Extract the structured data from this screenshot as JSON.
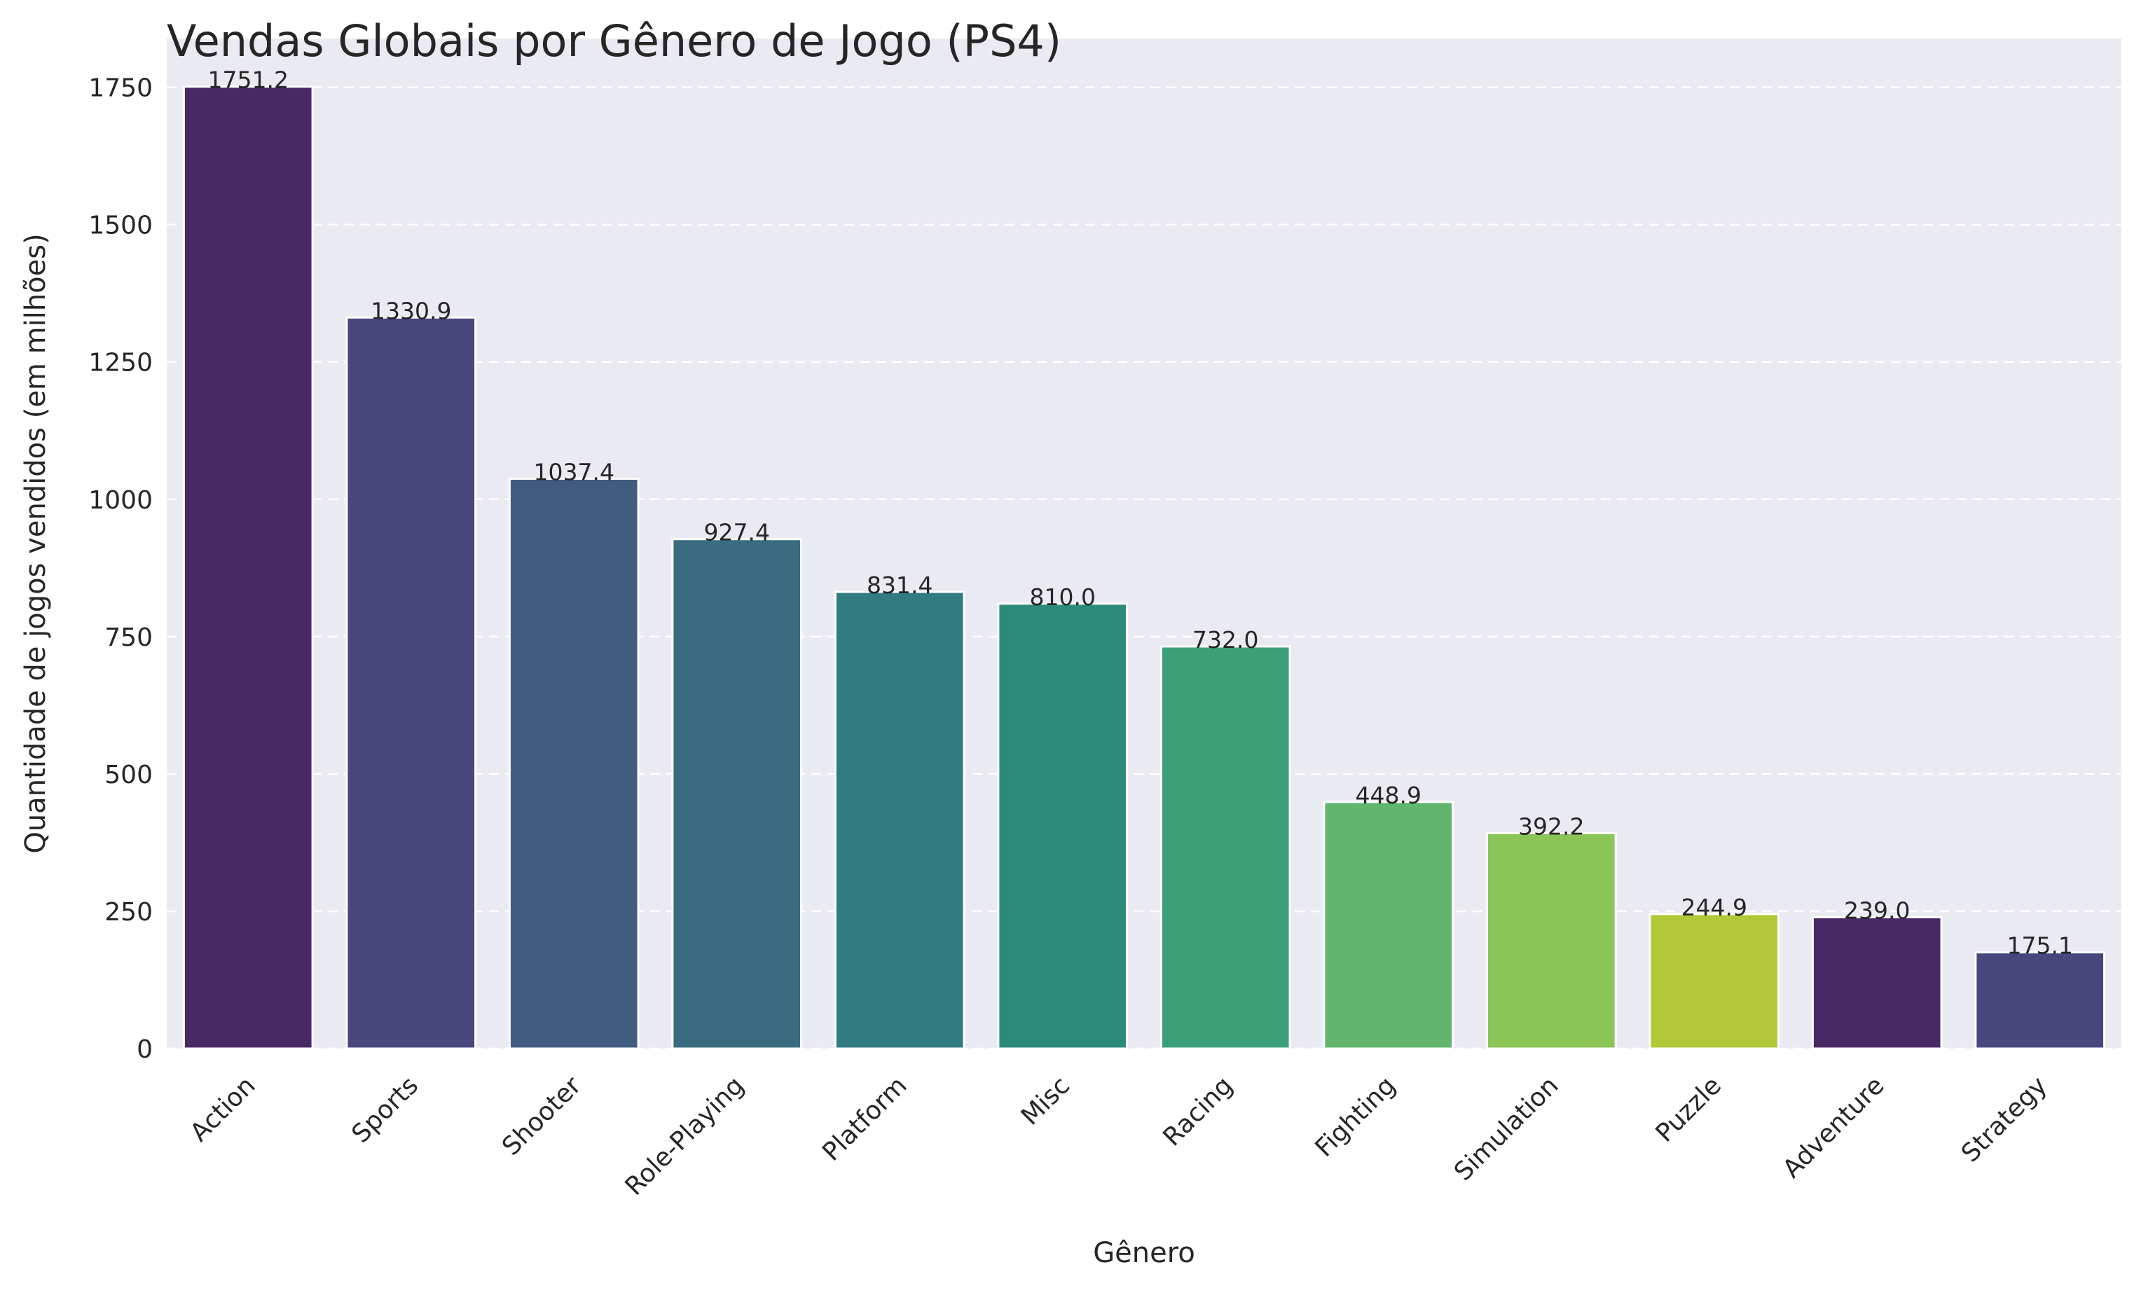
{
  "chart_data": {
    "type": "bar",
    "title": "Vendas Globais por Gênero de Jogo (PS4)",
    "xlabel": "Gênero",
    "ylabel": "Quantidade de jogos vendidos (em milhões)",
    "categories": [
      "Action",
      "Sports",
      "Shooter",
      "Role-Playing",
      "Platform",
      "Misc",
      "Racing",
      "Fighting",
      "Simulation",
      "Puzzle",
      "Adventure",
      "Strategy"
    ],
    "values": [
      1751.2,
      1330.9,
      1037.4,
      927.4,
      831.4,
      810.0,
      732.0,
      448.9,
      392.2,
      244.9,
      239.0,
      175.1
    ],
    "data_labels": [
      "1751.2",
      "1330.9",
      "1037.4",
      "927.4",
      "831.4",
      "810.0",
      "732.0",
      "448.9",
      "392.2",
      "244.9",
      "239.0",
      "175.1"
    ],
    "yticks": [
      0,
      250,
      500,
      750,
      1000,
      1250,
      1500,
      1750
    ],
    "ylim": [
      0,
      1838.8
    ],
    "grid": "horizontal dashed",
    "legend": "none",
    "colors": [
      "#482966",
      "#47467d",
      "#415b81",
      "#396c80",
      "#307c80",
      "#2b8a79",
      "#3ba078",
      "#62b56e",
      "#8bc457",
      "#b3c838",
      "#482966",
      "#47467d"
    ],
    "background": "#eaeaf2"
  }
}
